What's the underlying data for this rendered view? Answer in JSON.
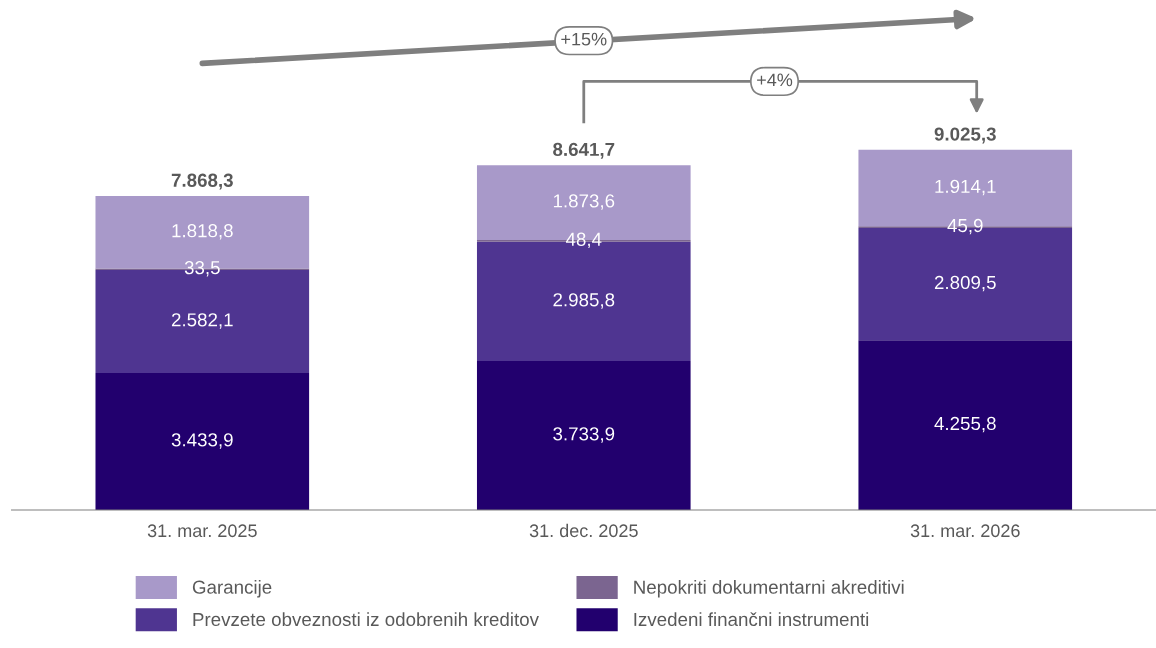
{
  "chart_data": {
    "type": "bar",
    "stacked": true,
    "categories": [
      "31. mar. 2025",
      "31. dec. 2025",
      "31. mar. 2026"
    ],
    "series": [
      {
        "name": "Izvedeni finančni instrumenti",
        "color": "#22006e",
        "values": [
          3433.9,
          3733.9,
          4255.8
        ],
        "value_labels": [
          "3.433,9",
          "3.733,9",
          "4.255,8"
        ]
      },
      {
        "name": "Prevzete obveznosti iz odobrenih kreditov",
        "color": "#4f3591",
        "values": [
          2582.1,
          2985.8,
          2809.5
        ],
        "value_labels": [
          "2.582,1",
          "2.985,8",
          "2.809,5"
        ]
      },
      {
        "name": "Nepokriti dokumentarni akreditivi",
        "color": "#7b6590",
        "values": [
          33.5,
          48.4,
          45.9
        ],
        "value_labels": [
          "33,5",
          "48,4",
          "45,9"
        ]
      },
      {
        "name": "Garancije",
        "color": "#a899c9",
        "values": [
          1818.8,
          1873.6,
          1914.1
        ],
        "value_labels": [
          "1.818,8",
          "1.873,6",
          "1.914,1"
        ]
      }
    ],
    "totals": [
      "7.868,3",
      "8.641,7",
      "9.025,3"
    ],
    "annotations": [
      "+15%",
      "+4%"
    ],
    "legend": "bottom",
    "grid": false,
    "tick_labels": "x"
  }
}
